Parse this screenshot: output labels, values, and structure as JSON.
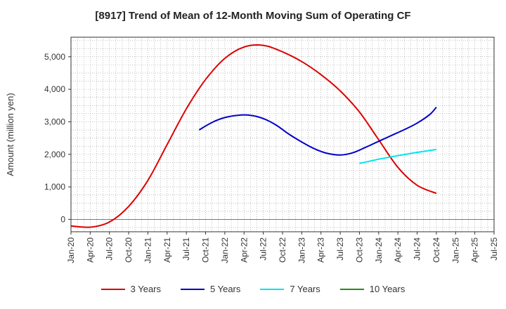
{
  "chart_data": {
    "type": "line",
    "title": "[8917]  Trend of Mean of 12-Month Moving Sum of Operating CF",
    "xlabel": "",
    "ylabel": "Amount (million yen)",
    "ylim": [
      -380,
      5600
    ],
    "yticks": [
      0,
      1000,
      2000,
      3000,
      4000,
      5000
    ],
    "ytick_labels": [
      "0",
      "1,000",
      "2,000",
      "3,000",
      "4,000",
      "5,000"
    ],
    "xlim": [
      0,
      66
    ],
    "xticks": [
      0,
      3,
      6,
      9,
      12,
      15,
      18,
      21,
      24,
      27,
      30,
      33,
      36,
      39,
      42,
      45,
      48,
      51,
      54,
      57,
      60,
      63,
      66
    ],
    "xtick_labels": [
      "Jan-20",
      "Apr-20",
      "Jul-20",
      "Oct-20",
      "Jan-21",
      "Apr-21",
      "Jul-21",
      "Oct-21",
      "Jan-22",
      "Apr-22",
      "Jul-22",
      "Oct-22",
      "Jan-23",
      "Apr-23",
      "Jul-23",
      "Oct-23",
      "Jan-24",
      "Apr-24",
      "Jul-24",
      "Oct-24",
      "Jan-25",
      "Apr-25",
      "Jul-25"
    ],
    "grid": true,
    "legend_position": "bottom",
    "series": [
      {
        "name": "3 Years",
        "color": "#dd0000",
        "x": [
          0,
          3,
          6,
          9,
          12,
          15,
          18,
          21,
          24,
          27,
          30,
          33,
          36,
          39,
          42,
          45,
          48,
          51,
          54,
          57
        ],
        "y": [
          -200,
          -240,
          -80,
          400,
          1200,
          2300,
          3400,
          4300,
          4950,
          5300,
          5350,
          5150,
          4850,
          4450,
          3950,
          3300,
          2450,
          1600,
          1050,
          800
        ]
      },
      {
        "name": "5 Years",
        "color": "#0000cc",
        "x": [
          20,
          22,
          24,
          26,
          28,
          30,
          32,
          34,
          36,
          38,
          40,
          42,
          44,
          46,
          48,
          50,
          52,
          54,
          56,
          57
        ],
        "y": [
          2750,
          2980,
          3130,
          3200,
          3200,
          3100,
          2900,
          2620,
          2380,
          2170,
          2030,
          1980,
          2050,
          2220,
          2400,
          2580,
          2760,
          2960,
          3230,
          3450
        ]
      },
      {
        "name": "7 Years",
        "color": "#00e5ee",
        "x": [
          45,
          48,
          51,
          54,
          57
        ],
        "y": [
          1720,
          1850,
          1960,
          2060,
          2150
        ]
      },
      {
        "name": "10 Years",
        "color": "#228b22",
        "x": [],
        "y": []
      }
    ]
  }
}
